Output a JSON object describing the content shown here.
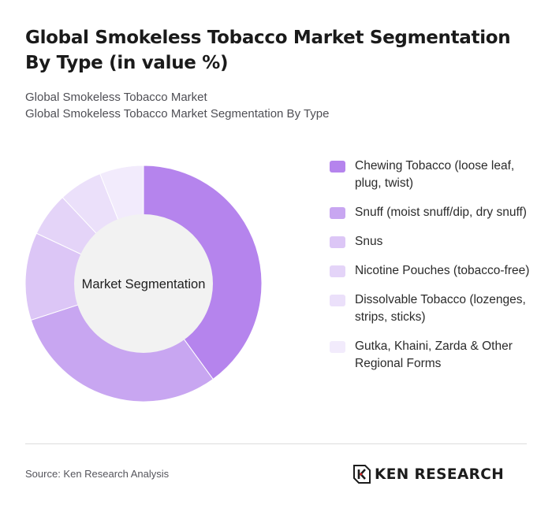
{
  "header": {
    "title": "Global Smokeless Tobacco Market Segmentation By Type (in value %)",
    "subtitle_lines": [
      "Global Smokeless Tobacco Market",
      "Global Smokeless Tobacco Market Segmentation By Type"
    ]
  },
  "chart_data": {
    "type": "pie",
    "center_label": "Market Segmentation",
    "legend_position": "right",
    "categories": [
      "Chewing Tobacco (loose leaf, plug, twist)",
      "Snuff (moist snuff/dip, dry snuff)",
      "Snus",
      "Nicotine Pouches (tobacco-free)",
      "Dissolvable Tobacco (lozenges, strips, sticks)",
      "Gutka, Khaini, Zarda & Other Regional Forms"
    ],
    "values": [
      40,
      30,
      12,
      6,
      6,
      6
    ],
    "colors": [
      "#b584ed",
      "#c8a6f1",
      "#dcc6f6",
      "#e4d4f8",
      "#ebe0fa",
      "#f2ebfc"
    ]
  },
  "footer": {
    "source": "Source: Ken Research Analysis",
    "brand": "KEN RESEARCH",
    "logo_icon": "ken-research-k-logo-icon"
  }
}
